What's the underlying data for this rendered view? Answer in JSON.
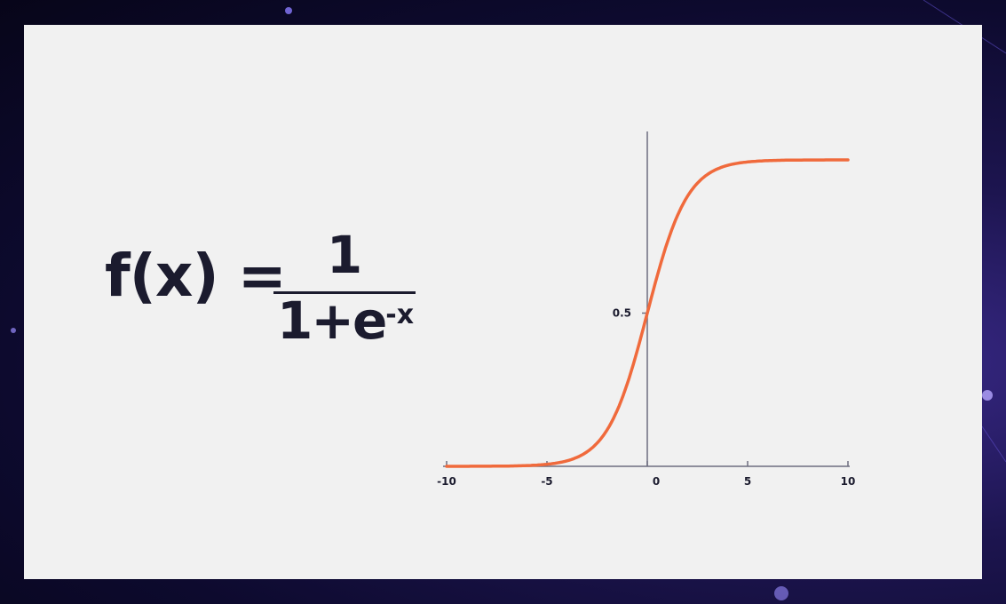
{
  "formula": {
    "lhs": "f(x) =",
    "numerator": "1",
    "denominator_base": "1+e",
    "denominator_exponent": "-x"
  },
  "chart_data": {
    "type": "line",
    "title": "",
    "xlabel": "",
    "ylabel": "",
    "xlim": [
      -10,
      10
    ],
    "ylim": [
      0,
      1
    ],
    "x_ticks": [
      -10,
      -5,
      0,
      5,
      10
    ],
    "y_ticks": [
      0.5
    ],
    "x_tick_labels": [
      "-10",
      "-5",
      "0",
      "5",
      "10"
    ],
    "y_tick_labels": [
      "0.5"
    ],
    "series": [
      {
        "function": "1/(1+e^-x)",
        "color": "#f06a3c",
        "x": [
          -10,
          -8,
          -6,
          -5,
          -4,
          -3,
          -2,
          -1,
          0,
          1,
          2,
          3,
          4,
          5,
          6,
          8,
          10
        ],
        "y": [
          0.0,
          0.0,
          0.0025,
          0.0067,
          0.018,
          0.047,
          0.119,
          0.269,
          0.5,
          0.731,
          0.881,
          0.953,
          0.982,
          0.993,
          0.9975,
          1.0,
          1.0
        ]
      }
    ],
    "axis_color": "#6e6e80",
    "grid": false,
    "legend": "none"
  }
}
